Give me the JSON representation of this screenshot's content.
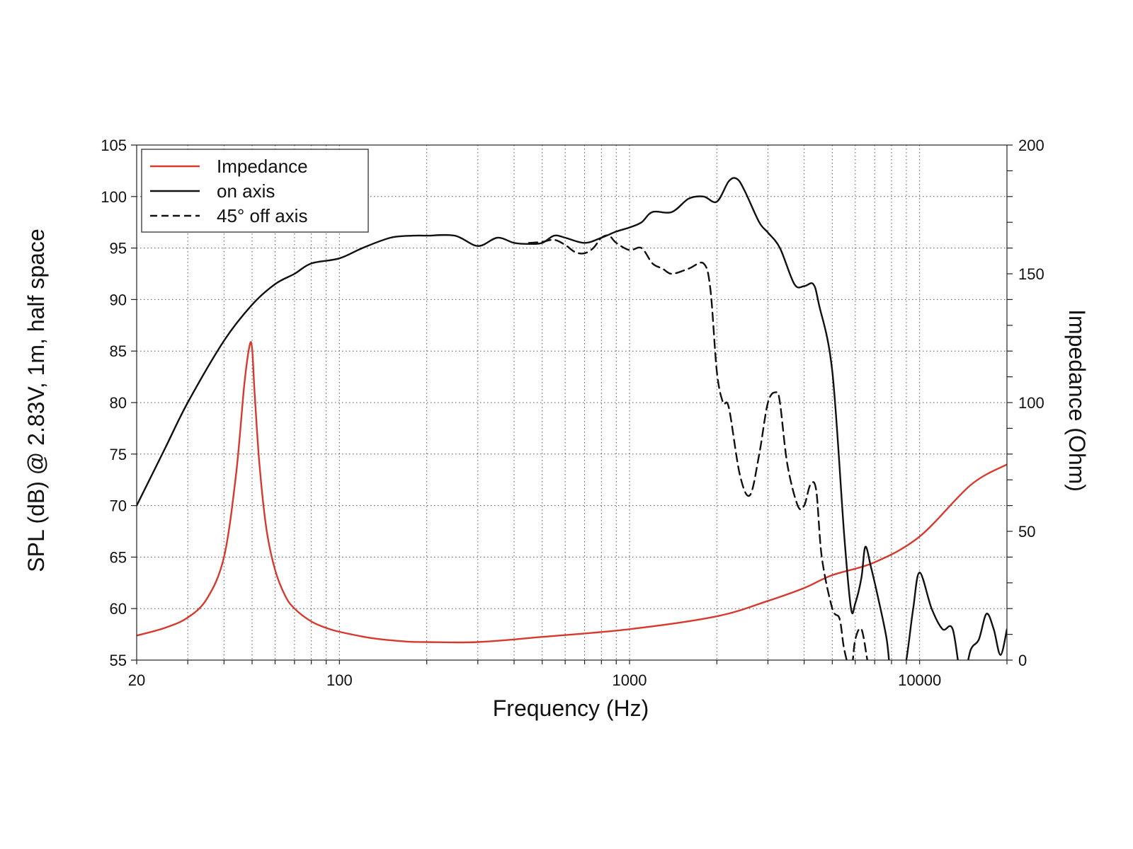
{
  "chart_data": {
    "type": "line",
    "x_scale": "log",
    "xlabel": "Frequency (Hz)",
    "ylabel": "SPL (dB) @ 2.83V, 1m, half space",
    "y2label": "Impedance (Ohm)",
    "xlim": [
      20,
      20000
    ],
    "ylim": [
      55,
      105
    ],
    "y2lim": [
      0,
      200
    ],
    "x_ticks": [
      20,
      100,
      1000,
      10000
    ],
    "x_tick_labels": [
      "20",
      "100",
      "1000",
      "10000"
    ],
    "y_ticks": [
      55,
      60,
      65,
      70,
      75,
      80,
      85,
      90,
      95,
      100,
      105
    ],
    "y_tick_labels": [
      "55",
      "60",
      "65",
      "70",
      "75",
      "80",
      "85",
      "90",
      "95",
      "100",
      "105"
    ],
    "y2_ticks": [
      0,
      50,
      100,
      150,
      200
    ],
    "y2_tick_labels": [
      "0",
      "50",
      "100",
      "150",
      "200"
    ],
    "grid": true,
    "legend_position": "top-left",
    "series": [
      {
        "name": "Impedance",
        "axis": "right",
        "color": "#d63a2f",
        "style": "solid",
        "x": [
          20,
          25,
          30,
          35,
          40,
          44,
          47,
          49,
          50,
          51,
          53,
          56,
          60,
          65,
          70,
          80,
          90,
          100,
          130,
          170,
          200,
          300,
          500,
          1000,
          2000,
          3000,
          4000,
          5000,
          7000,
          10000,
          15000,
          20000
        ],
        "y": [
          9.5,
          12.5,
          16.5,
          24,
          40,
          72,
          107,
          122,
          121,
          104,
          76,
          51,
          35,
          25,
          20,
          15,
          12.5,
          11,
          8.5,
          7.2,
          7,
          7,
          9,
          12,
          17,
          23,
          28,
          33,
          38,
          48,
          68,
          76
        ]
      },
      {
        "name": "on axis",
        "axis": "left",
        "color": "#111111",
        "style": "solid",
        "x": [
          20,
          25,
          30,
          40,
          50,
          60,
          70,
          80,
          100,
          120,
          150,
          180,
          200,
          250,
          300,
          350,
          400,
          450,
          500,
          550,
          600,
          700,
          800,
          900,
          1000,
          1100,
          1200,
          1400,
          1600,
          1800,
          2000,
          2200,
          2350,
          2500,
          2800,
          3000,
          3300,
          3700,
          4000,
          4300,
          4500,
          5000,
          5500,
          5800,
          6000,
          6300,
          6500,
          6800,
          7200,
          7700,
          8000,
          8500,
          9000,
          9500,
          10000,
          11000,
          12000,
          13000,
          14000,
          15000,
          16000,
          17000,
          18000,
          19000,
          20000
        ],
        "y": [
          70,
          75.5,
          80,
          86,
          89.5,
          91.5,
          92.5,
          93.5,
          94,
          95,
          96,
          96.2,
          96.2,
          96.2,
          95.2,
          96,
          95.5,
          95.4,
          95.5,
          96.2,
          96,
          95.5,
          96,
          96.6,
          97,
          97.5,
          98.5,
          98.5,
          99.8,
          100,
          99.5,
          101.5,
          101.7,
          100.5,
          97.5,
          96.5,
          95,
          91.5,
          91.3,
          91.5,
          89.5,
          83,
          67,
          60,
          60.5,
          63,
          66,
          64,
          61,
          57,
          53,
          52,
          55,
          60,
          63.5,
          60,
          58,
          58,
          53,
          56,
          57,
          59.5,
          58,
          55.5,
          58
        ]
      },
      {
        "name": "45° off axis",
        "axis": "left",
        "color": "#111111",
        "style": "dashed",
        "x": [
          450,
          500,
          550,
          600,
          650,
          700,
          750,
          800,
          850,
          900,
          1000,
          1100,
          1200,
          1300,
          1400,
          1600,
          1800,
          1900,
          2000,
          2100,
          2200,
          2400,
          2600,
          2800,
          3000,
          3200,
          3300,
          3500,
          3800,
          4000,
          4200,
          4400,
          4600,
          5000,
          5300,
          5500,
          5800,
          6000,
          6300,
          6600
        ],
        "y": [
          95.5,
          95.6,
          95.8,
          95.3,
          94.6,
          94.5,
          95,
          96,
          96.2,
          95.5,
          94.8,
          95,
          93.5,
          93,
          92.5,
          93,
          93.5,
          91,
          83,
          80,
          79.5,
          73,
          71,
          75,
          80,
          81,
          80,
          74,
          70,
          70,
          72,
          71.5,
          65,
          60,
          59,
          56,
          54,
          57,
          58,
          55
        ]
      }
    ]
  }
}
